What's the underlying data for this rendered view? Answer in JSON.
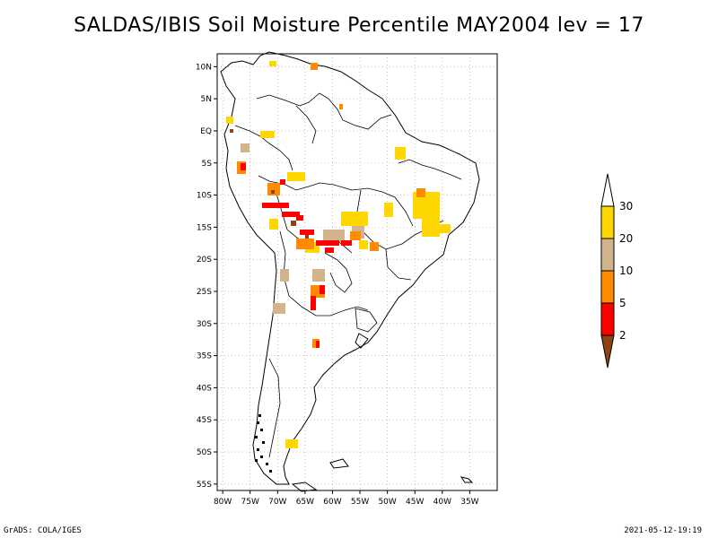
{
  "title": "SALDAS/IBIS Soil Moisture Percentile MAY2004 lev = 17",
  "footer": {
    "left": "GrADS: COLA/IGES",
    "right": "2021-05-12-19:19"
  },
  "map": {
    "lon_range": [
      -81,
      -30
    ],
    "lat_range": [
      -56,
      12
    ],
    "lon_ticks": [
      {
        "value": -80,
        "label": "80W"
      },
      {
        "value": -75,
        "label": "75W"
      },
      {
        "value": -70,
        "label": "70W"
      },
      {
        "value": -65,
        "label": "65W"
      },
      {
        "value": -60,
        "label": "60W"
      },
      {
        "value": -55,
        "label": "55W"
      },
      {
        "value": -50,
        "label": "50W"
      },
      {
        "value": -45,
        "label": "45W"
      },
      {
        "value": -40,
        "label": "40W"
      },
      {
        "value": -35,
        "label": "35W"
      }
    ],
    "lat_ticks": [
      {
        "value": 10,
        "label": "10N"
      },
      {
        "value": 5,
        "label": "5N"
      },
      {
        "value": 0,
        "label": "EQ"
      },
      {
        "value": -5,
        "label": "5S"
      },
      {
        "value": -10,
        "label": "10S"
      },
      {
        "value": -15,
        "label": "15S"
      },
      {
        "value": -20,
        "label": "20S"
      },
      {
        "value": -25,
        "label": "25S"
      },
      {
        "value": -30,
        "label": "30S"
      },
      {
        "value": -35,
        "label": "35S"
      },
      {
        "value": -40,
        "label": "40S"
      },
      {
        "value": -45,
        "label": "45S"
      },
      {
        "value": -50,
        "label": "50S"
      },
      {
        "value": -55,
        "label": "55S"
      }
    ],
    "gridlines": "dotted"
  },
  "colorbar": {
    "levels": [
      "2",
      "5",
      "10",
      "20",
      "30"
    ],
    "colors": [
      "#8b4513",
      "#ff0000",
      "#ff8c00",
      "#d2b48c",
      "#ffd700",
      "#ffffff"
    ]
  }
}
